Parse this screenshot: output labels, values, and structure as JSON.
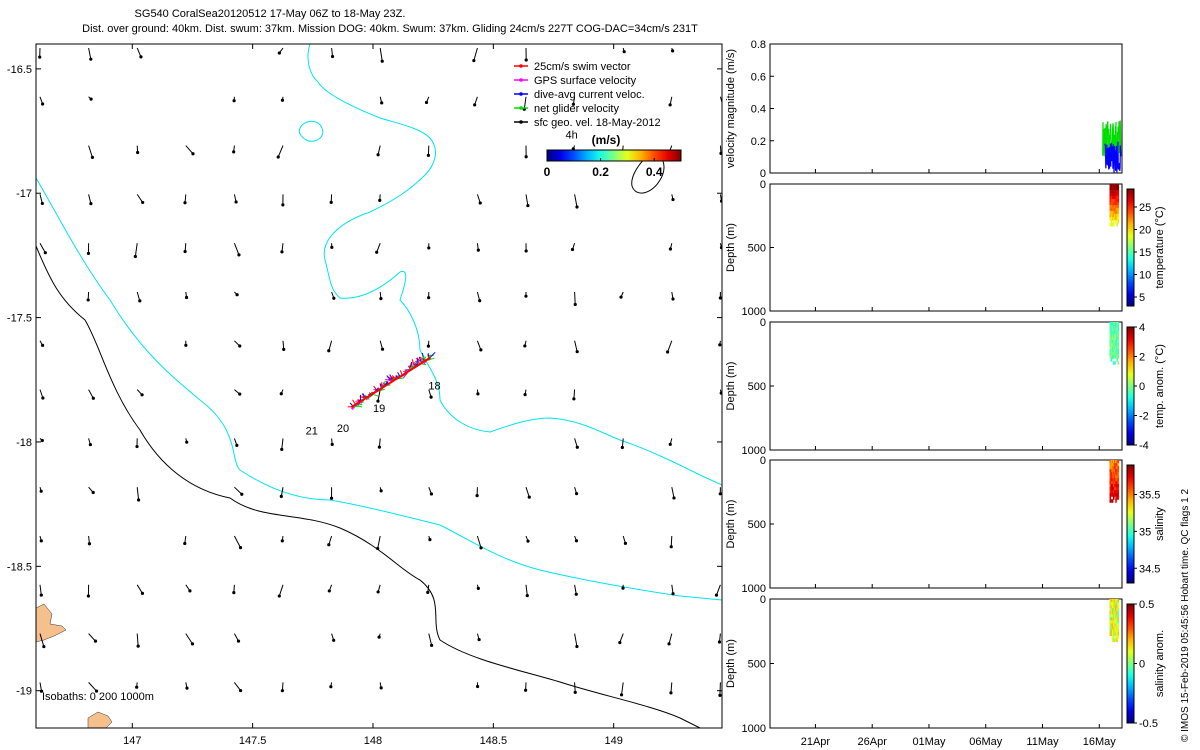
{
  "header": {
    "title": "SG540 CoralSea20120512 17-May 06Z to 18-May 23Z.",
    "subtitle": "Dist. over ground: 40km. Dist. swum: 37km. Mission DOG: 40km. Swum: 37km. Gliding 24cm/s 227T COG-DAC=34cm/s 231T"
  },
  "footer_note": "© IMOS 15-Feb-2019 05:45:56 Hobart time. QC flags 1  2",
  "colors": {
    "swim_vector": "#ff0000",
    "gps_velocity": "#ff00ff",
    "dive_avg_current": "#0000ff",
    "net_glider": "#00dd00",
    "sfc_geo_vel": "#000000",
    "isobath_200": "#00e5ee",
    "isobath_1000": "#000000",
    "land": "#f5c08c"
  },
  "chart_data": [
    {
      "type": "scatter",
      "name": "map",
      "xlim": [
        146.6,
        149.45
      ],
      "ylim": [
        -19.15,
        -16.4
      ],
      "xticks": [
        147,
        147.5,
        148,
        148.5,
        149
      ],
      "xtick_labels": [
        "147",
        "147.5",
        "148",
        "148.5",
        "149"
      ],
      "yticks": [
        -16.5,
        -17,
        -17.5,
        -18,
        -18.5,
        -19
      ],
      "ytick_labels": [
        "-16.5",
        "-17",
        "-17.5",
        "-18",
        "-18.5",
        "-19"
      ],
      "legend": [
        {
          "label": "25cm/s swim vector",
          "color": "#ff0000"
        },
        {
          "label": "GPS surface velocity",
          "color": "#ff00ff"
        },
        {
          "label": "dive-avg current veloc.",
          "color": "#0000ff"
        },
        {
          "label": "net glider velocity",
          "color": "#00dd00"
        },
        {
          "label": "sfc geo. vel. 18-May-2012",
          "color": "#000000"
        }
      ],
      "colorbar": {
        "title": "(m/s)",
        "tick_labels": [
          "0",
          "0.2",
          "0.4"
        ],
        "range": [
          0,
          0.5
        ]
      },
      "isobath_label": "Isobaths: 0   200  1000m",
      "annotations": [
        {
          "text": "18",
          "lon": 148.23,
          "lat": -17.79
        },
        {
          "text": "19",
          "lon": 148.0,
          "lat": -17.88
        },
        {
          "text": "20",
          "lon": 147.85,
          "lat": -17.96
        },
        {
          "text": "21",
          "lon": 147.72,
          "lat": -17.97
        },
        {
          "text": "4h",
          "lon": 148.8,
          "lat": -16.78
        }
      ],
      "track": {
        "start": [
          148.24,
          -17.66
        ],
        "end": [
          147.91,
          -17.86
        ]
      }
    },
    {
      "type": "line",
      "name": "velocity",
      "ylabel": "velocity magnitude (m/s)",
      "ylim": [
        0,
        0.8
      ],
      "yticks": [
        0,
        0.2,
        0.4,
        0.6,
        0.8
      ],
      "ytick_labels": [
        "0",
        "0.2",
        "0.4",
        "0.6",
        "0.8"
      ],
      "xlim_days": [
        0,
        31
      ],
      "series": [
        {
          "name": "net glider velocity",
          "color": "#00dd00",
          "range": [
            0.1,
            0.33
          ],
          "day_span": [
            29.3,
            30.9
          ]
        },
        {
          "name": "dive-avg current",
          "color": "#0000ff",
          "range": [
            0.0,
            0.2
          ],
          "day_span": [
            29.5,
            30.9
          ]
        }
      ]
    },
    {
      "type": "heatmap",
      "name": "temperature",
      "ylabel": "Depth (m)",
      "ylim": [
        0,
        1000
      ],
      "yticks": [
        0,
        500,
        1000
      ],
      "colorbar_label": "temperature (°C)",
      "colorbar_ticks": [
        "5",
        "10",
        "15",
        "20",
        "25"
      ],
      "colorbar_range": [
        3,
        29
      ],
      "data_day_span": [
        29.9,
        30.7
      ],
      "data_depth": [
        0,
        330
      ]
    },
    {
      "type": "heatmap",
      "name": "temp_anom",
      "ylabel": "Depth (m)",
      "ylim": [
        0,
        1000
      ],
      "yticks": [
        0,
        500,
        1000
      ],
      "colorbar_label": "temp. anom. (°C)",
      "colorbar_ticks": [
        "-4",
        "-2",
        "0",
        "2",
        "4"
      ],
      "colorbar_range": [
        -4,
        4
      ],
      "data_day_span": [
        29.9,
        30.7
      ],
      "data_depth": [
        0,
        330
      ]
    },
    {
      "type": "heatmap",
      "name": "salinity",
      "ylabel": "Depth (m)",
      "ylim": [
        0,
        1000
      ],
      "yticks": [
        0,
        500,
        1000
      ],
      "colorbar_label": "salinity",
      "colorbar_ticks": [
        "34.5",
        "35",
        "35.5"
      ],
      "colorbar_range": [
        34.3,
        35.9
      ],
      "data_day_span": [
        29.9,
        30.7
      ],
      "data_depth": [
        0,
        330
      ]
    },
    {
      "type": "heatmap",
      "name": "sal_anom",
      "ylabel": "Depth (m)",
      "ylim": [
        0,
        1000
      ],
      "yticks": [
        0,
        500,
        1000
      ],
      "colorbar_label": "salinity anom.",
      "colorbar_ticks": [
        "-0.5",
        "0",
        "0.5"
      ],
      "colorbar_range": [
        -0.5,
        0.5
      ],
      "data_day_span": [
        29.9,
        30.7
      ],
      "data_depth": [
        0,
        330
      ]
    }
  ],
  "time_axis": {
    "start": "17Apr",
    "tick_days": [
      4,
      9,
      14,
      19,
      24,
      29
    ],
    "tick_labels": [
      "21Apr",
      "26Apr",
      "01May",
      "06May",
      "11May",
      "16May"
    ]
  }
}
